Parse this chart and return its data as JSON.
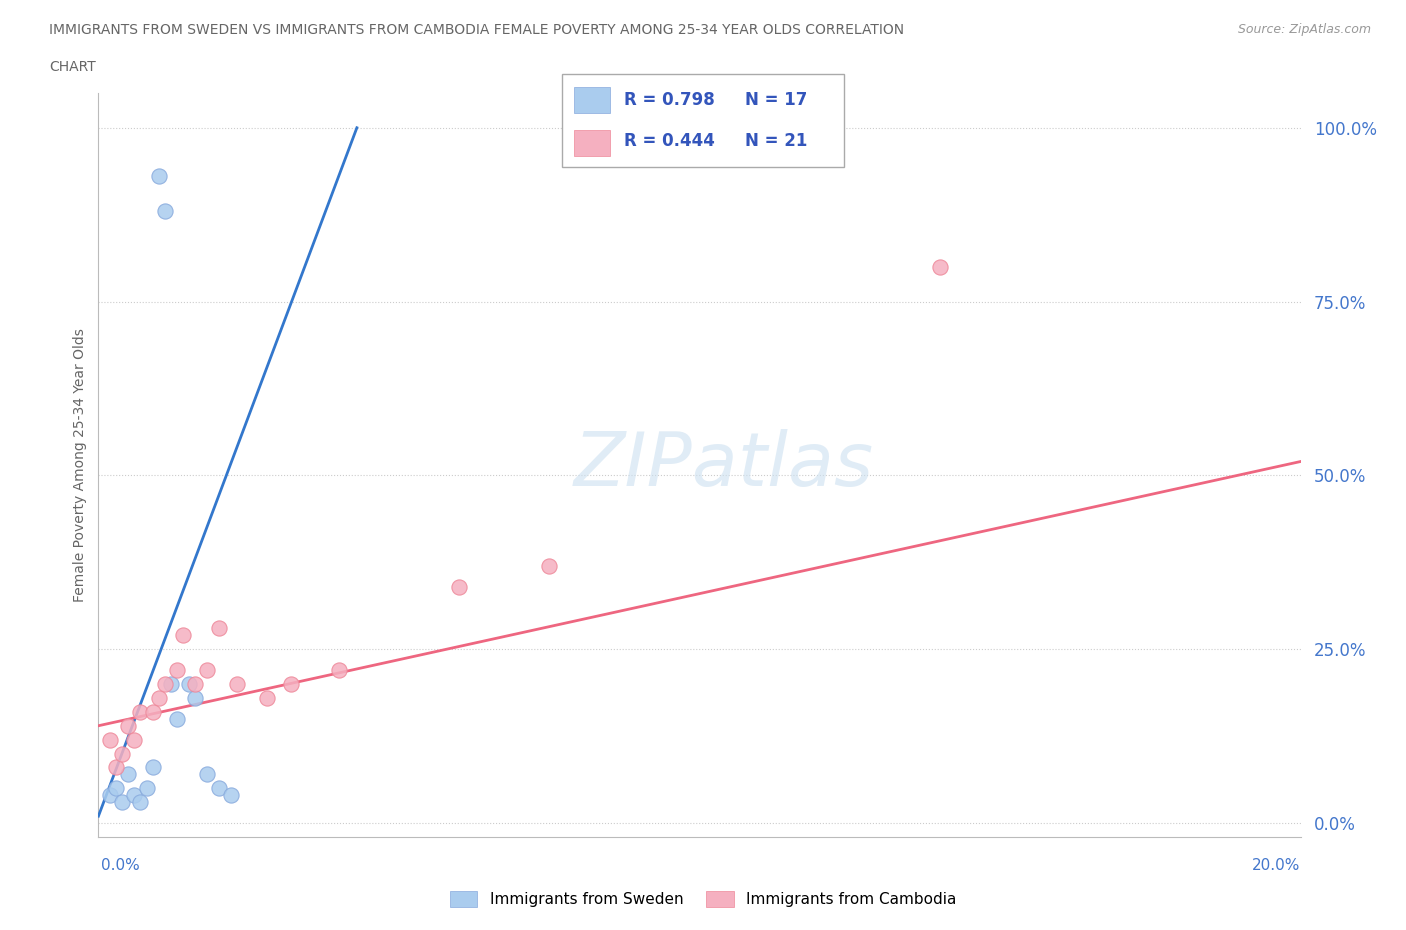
{
  "title_line1": "IMMIGRANTS FROM SWEDEN VS IMMIGRANTS FROM CAMBODIA FEMALE POVERTY AMONG 25-34 YEAR OLDS CORRELATION",
  "title_line2": "CHART",
  "source": "Source: ZipAtlas.com",
  "xlabel_bottom_left": "0.0%",
  "xlabel_bottom_right": "20.0%",
  "ylabel": "Female Poverty Among 25-34 Year Olds",
  "ytick_vals": [
    0.0,
    0.25,
    0.5,
    0.75,
    1.0
  ],
  "ytick_labels": [
    "0.0%",
    "25.0%",
    "50.0%",
    "75.0%",
    "100.0%"
  ],
  "xmin": 0.0,
  "xmax": 0.2,
  "ymin": -0.02,
  "ymax": 1.05,
  "watermark": "ZIPatlas",
  "sweden_color": "#aaccee",
  "cambodia_color": "#f5b0c0",
  "sweden_edge_color": "#88aadd",
  "cambodia_edge_color": "#ee8899",
  "sweden_line_color": "#3377cc",
  "cambodia_line_color": "#ee6680",
  "sweden_R": 0.798,
  "sweden_N": 17,
  "cambodia_R": 0.444,
  "cambodia_N": 21,
  "legend_text_color": "#3355bb",
  "sweden_scatter_x": [
    0.002,
    0.003,
    0.004,
    0.005,
    0.006,
    0.007,
    0.008,
    0.009,
    0.01,
    0.011,
    0.012,
    0.013,
    0.015,
    0.016,
    0.018,
    0.02,
    0.022
  ],
  "sweden_scatter_y": [
    0.04,
    0.05,
    0.03,
    0.07,
    0.04,
    0.03,
    0.05,
    0.08,
    0.93,
    0.88,
    0.2,
    0.15,
    0.2,
    0.18,
    0.07,
    0.05,
    0.04
  ],
  "cambodia_scatter_x": [
    0.002,
    0.003,
    0.004,
    0.005,
    0.006,
    0.007,
    0.009,
    0.01,
    0.011,
    0.013,
    0.014,
    0.016,
    0.018,
    0.02,
    0.023,
    0.028,
    0.032,
    0.04,
    0.06,
    0.075,
    0.14
  ],
  "cambodia_scatter_y": [
    0.12,
    0.08,
    0.1,
    0.14,
    0.12,
    0.16,
    0.16,
    0.18,
    0.2,
    0.22,
    0.27,
    0.2,
    0.22,
    0.28,
    0.2,
    0.18,
    0.2,
    0.22,
    0.34,
    0.37,
    0.8
  ],
  "sweden_line_x": [
    0.0,
    0.043
  ],
  "sweden_line_y": [
    0.01,
    1.0
  ],
  "cambodia_line_x": [
    0.0,
    0.2
  ],
  "cambodia_line_y": [
    0.14,
    0.52
  ]
}
